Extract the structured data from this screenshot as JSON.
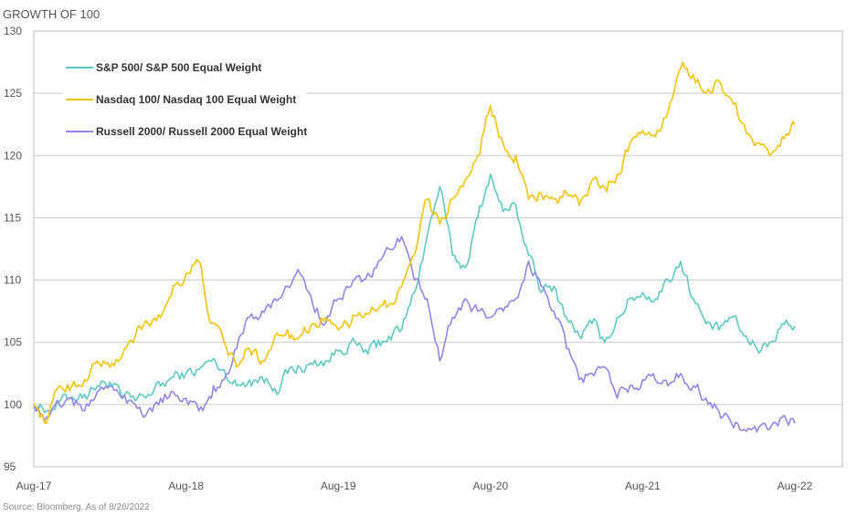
{
  "chart_data": {
    "type": "line",
    "title": "GROWTH OF 100",
    "source": "Source: Bloomberg. As of 8/26/2022",
    "xlabel": "",
    "ylabel": "",
    "ylim": [
      95,
      130
    ],
    "yticks": [
      95,
      100,
      105,
      110,
      115,
      120,
      125,
      130
    ],
    "xlim": [
      "2017-08",
      "2022-08"
    ],
    "xticks": [
      "Aug-17",
      "Aug-18",
      "Aug-19",
      "Aug-20",
      "Aug-21",
      "Aug-22"
    ],
    "grid": "horizontal",
    "legend_position": "top-left",
    "series": [
      {
        "name": "S&P 500/ S&P 500 Equal Weight",
        "color": "#5ec9c2",
        "points": [
          [
            "2017-08",
            100.0
          ],
          [
            "2017-09",
            99.5
          ],
          [
            "2017-10",
            100.2
          ],
          [
            "2017-11",
            100.6
          ],
          [
            "2017-12",
            100.8
          ],
          [
            "2018-01",
            101.5
          ],
          [
            "2018-02",
            101.8
          ],
          [
            "2018-03",
            100.5
          ],
          [
            "2018-04",
            100.3
          ],
          [
            "2018-05",
            100.8
          ],
          [
            "2018-06",
            101.5
          ],
          [
            "2018-07",
            102.2
          ],
          [
            "2018-08",
            102.5
          ],
          [
            "2018-09",
            102.8
          ],
          [
            "2018-10",
            103.5
          ],
          [
            "2018-11",
            102.8
          ],
          [
            "2018-12",
            101.5
          ],
          [
            "2019-01",
            102.0
          ],
          [
            "2019-02",
            102.2
          ],
          [
            "2019-03",
            101.3
          ],
          [
            "2019-04",
            102.5
          ],
          [
            "2019-05",
            103.0
          ],
          [
            "2019-06",
            103.2
          ],
          [
            "2019-07",
            103.5
          ],
          [
            "2019-08",
            104.3
          ],
          [
            "2019-09",
            105.0
          ],
          [
            "2019-10",
            104.2
          ],
          [
            "2019-11",
            104.6
          ],
          [
            "2019-12",
            105.5
          ],
          [
            "2020-01",
            106.0
          ],
          [
            "2020-02",
            109.0
          ],
          [
            "2020-03",
            113.5
          ],
          [
            "2020-04",
            117.5
          ],
          [
            "2020-05",
            112.0
          ],
          [
            "2020-06",
            111.0
          ],
          [
            "2020-07",
            115.0
          ],
          [
            "2020-08",
            118.5
          ],
          [
            "2020-09",
            115.5
          ],
          [
            "2020-10",
            116.0
          ],
          [
            "2020-11",
            112.0
          ],
          [
            "2020-12",
            109.0
          ],
          [
            "2021-01",
            109.5
          ],
          [
            "2021-02",
            107.0
          ],
          [
            "2021-03",
            105.5
          ],
          [
            "2021-04",
            106.5
          ],
          [
            "2021-05",
            105.0
          ],
          [
            "2021-06",
            107.0
          ],
          [
            "2021-07",
            108.5
          ],
          [
            "2021-08",
            109.0
          ],
          [
            "2021-09",
            108.5
          ],
          [
            "2021-10",
            110.0
          ],
          [
            "2021-11",
            111.5
          ],
          [
            "2021-12",
            108.5
          ],
          [
            "2022-01",
            106.5
          ],
          [
            "2022-02",
            106.0
          ],
          [
            "2022-03",
            107.0
          ],
          [
            "2022-04",
            105.5
          ],
          [
            "2022-05",
            104.5
          ],
          [
            "2022-06",
            105.0
          ],
          [
            "2022-07",
            106.5
          ],
          [
            "2022-08",
            106.3
          ]
        ]
      },
      {
        "name": "Nasdaq 100/ Nasdaq 100 Equal Weight",
        "color": "#f2c500",
        "points": [
          [
            "2017-08",
            100.0
          ],
          [
            "2017-09",
            98.5
          ],
          [
            "2017-10",
            101.5
          ],
          [
            "2017-11",
            101.5
          ],
          [
            "2017-12",
            102.0
          ],
          [
            "2018-01",
            103.5
          ],
          [
            "2018-02",
            103.0
          ],
          [
            "2018-03",
            104.0
          ],
          [
            "2018-04",
            105.5
          ],
          [
            "2018-05",
            106.5
          ],
          [
            "2018-06",
            107.0
          ],
          [
            "2018-07",
            109.5
          ],
          [
            "2018-08",
            110.5
          ],
          [
            "2018-09",
            111.5
          ],
          [
            "2018-10",
            106.5
          ],
          [
            "2018-11",
            105.0
          ],
          [
            "2018-12",
            103.0
          ],
          [
            "2019-01",
            104.5
          ],
          [
            "2019-02",
            103.5
          ],
          [
            "2019-03",
            105.5
          ],
          [
            "2019-04",
            106.0
          ],
          [
            "2019-05",
            105.5
          ],
          [
            "2019-06",
            106.5
          ],
          [
            "2019-07",
            107.0
          ],
          [
            "2019-08",
            106.0
          ],
          [
            "2019-09",
            106.5
          ],
          [
            "2019-10",
            107.0
          ],
          [
            "2019-11",
            107.5
          ],
          [
            "2019-12",
            108.0
          ],
          [
            "2020-01",
            109.5
          ],
          [
            "2020-02",
            112.0
          ],
          [
            "2020-03",
            116.5
          ],
          [
            "2020-04",
            114.5
          ],
          [
            "2020-05",
            116.5
          ],
          [
            "2020-06",
            118.0
          ],
          [
            "2020-07",
            120.0
          ],
          [
            "2020-08",
            124.0
          ],
          [
            "2020-09",
            121.0
          ],
          [
            "2020-10",
            120.0
          ],
          [
            "2020-11",
            116.5
          ],
          [
            "2020-12",
            117.0
          ],
          [
            "2021-01",
            116.5
          ],
          [
            "2021-02",
            117.0
          ],
          [
            "2021-03",
            116.0
          ],
          [
            "2021-04",
            118.0
          ],
          [
            "2021-05",
            117.5
          ],
          [
            "2021-06",
            118.5
          ],
          [
            "2021-07",
            121.0
          ],
          [
            "2021-08",
            122.0
          ],
          [
            "2021-09",
            121.5
          ],
          [
            "2021-10",
            123.5
          ],
          [
            "2021-11",
            127.0
          ],
          [
            "2021-12",
            126.5
          ],
          [
            "2022-01",
            125.0
          ],
          [
            "2022-02",
            126.0
          ],
          [
            "2022-03",
            124.5
          ],
          [
            "2022-04",
            122.5
          ],
          [
            "2022-05",
            121.0
          ],
          [
            "2022-06",
            120.0
          ],
          [
            "2022-07",
            121.5
          ],
          [
            "2022-08",
            122.5
          ]
        ]
      },
      {
        "name": "Russell 2000/ Russell 2000 Equal Weight",
        "color": "#8f86e6",
        "points": [
          [
            "2017-08",
            100.0
          ],
          [
            "2017-09",
            99.0
          ],
          [
            "2017-10",
            100.0
          ],
          [
            "2017-11",
            100.5
          ],
          [
            "2017-12",
            99.5
          ],
          [
            "2018-01",
            101.0
          ],
          [
            "2018-02",
            101.5
          ],
          [
            "2018-03",
            100.5
          ],
          [
            "2018-04",
            100.0
          ],
          [
            "2018-05",
            99.5
          ],
          [
            "2018-06",
            100.5
          ],
          [
            "2018-07",
            101.0
          ],
          [
            "2018-08",
            100.5
          ],
          [
            "2018-09",
            99.5
          ],
          [
            "2018-10",
            100.5
          ],
          [
            "2018-11",
            102.0
          ],
          [
            "2018-12",
            104.5
          ],
          [
            "2019-01",
            107.0
          ],
          [
            "2019-02",
            107.5
          ],
          [
            "2019-03",
            108.5
          ],
          [
            "2019-04",
            109.5
          ],
          [
            "2019-05",
            110.5
          ],
          [
            "2019-06",
            108.0
          ],
          [
            "2019-07",
            106.5
          ],
          [
            "2019-08",
            108.5
          ],
          [
            "2019-09",
            109.5
          ],
          [
            "2019-10",
            110.0
          ],
          [
            "2019-11",
            111.0
          ],
          [
            "2019-12",
            112.5
          ],
          [
            "2020-01",
            113.5
          ],
          [
            "2020-02",
            110.0
          ],
          [
            "2020-03",
            108.5
          ],
          [
            "2020-04",
            103.5
          ],
          [
            "2020-05",
            107.0
          ],
          [
            "2020-06",
            108.5
          ],
          [
            "2020-07",
            107.5
          ],
          [
            "2020-08",
            107.0
          ],
          [
            "2020-09",
            107.5
          ],
          [
            "2020-10",
            108.5
          ],
          [
            "2020-11",
            111.5
          ],
          [
            "2020-12",
            109.5
          ],
          [
            "2021-01",
            107.5
          ],
          [
            "2021-02",
            104.5
          ],
          [
            "2021-03",
            102.0
          ],
          [
            "2021-04",
            102.5
          ],
          [
            "2021-05",
            103.0
          ],
          [
            "2021-06",
            100.5
          ],
          [
            "2021-07",
            101.5
          ],
          [
            "2021-08",
            102.0
          ],
          [
            "2021-09",
            102.0
          ],
          [
            "2021-10",
            101.5
          ],
          [
            "2021-11",
            102.5
          ],
          [
            "2021-12",
            101.5
          ],
          [
            "2022-01",
            100.5
          ],
          [
            "2022-02",
            99.5
          ],
          [
            "2022-03",
            98.5
          ],
          [
            "2022-04",
            98.0
          ],
          [
            "2022-05",
            97.8
          ],
          [
            "2022-06",
            98.0
          ],
          [
            "2022-07",
            99.0
          ],
          [
            "2022-08",
            98.5
          ]
        ]
      }
    ]
  }
}
